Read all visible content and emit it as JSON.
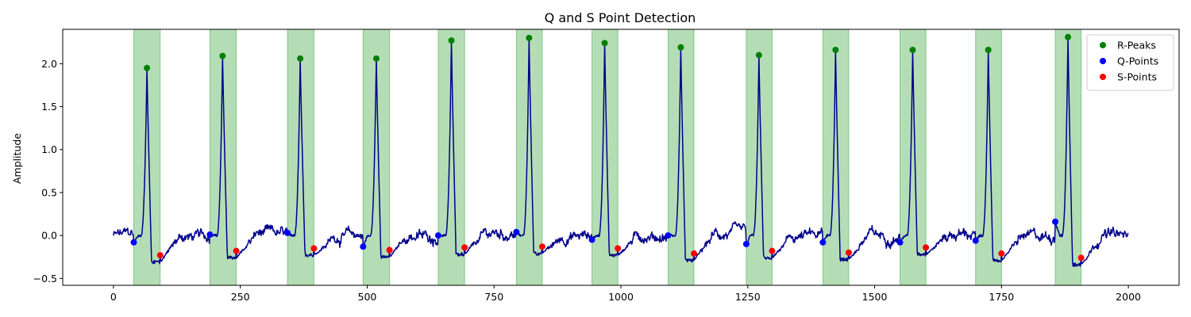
{
  "chart_data": {
    "type": "line",
    "title": "Q and S Point Detection",
    "xlabel": "",
    "ylabel": "Amplitude",
    "xlim": [
      -100,
      2100
    ],
    "ylim": [
      -0.58,
      2.4
    ],
    "xticks": [
      0,
      250,
      500,
      750,
      1000,
      1250,
      1500,
      1750,
      2000
    ],
    "yticks": [
      -0.5,
      0.0,
      0.5,
      1.0,
      1.5,
      2.0
    ],
    "ytick_labels": [
      "−0.5",
      "0.0",
      "0.5",
      "1.0",
      "1.5",
      "2.0"
    ],
    "grid": false,
    "legend_position": "top-right",
    "colors": {
      "signal": "#00008b",
      "r_peaks": "#008000",
      "q_points": "#0000ff",
      "s_points": "#ff0000",
      "qrs_span": "#4caf50"
    },
    "series": [
      {
        "name": "R-Peaks",
        "marker": "dot",
        "x": [
          66,
          215,
          368,
          518,
          666,
          819,
          968,
          1118,
          1272,
          1423,
          1575,
          1724,
          1881
        ],
        "y": [
          1.95,
          2.09,
          2.06,
          2.06,
          2.27,
          2.3,
          2.24,
          2.19,
          2.1,
          2.16,
          2.16,
          2.16,
          2.31
        ]
      },
      {
        "name": "Q-Points",
        "marker": "dot",
        "x": [
          40,
          190,
          343,
          492,
          640,
          794,
          943,
          1093,
          1247,
          1398,
          1550,
          1699,
          1856
        ],
        "y": [
          -0.08,
          0.01,
          0.03,
          -0.13,
          0.0,
          0.04,
          -0.05,
          0.0,
          -0.1,
          -0.08,
          -0.08,
          -0.06,
          0.16
        ]
      },
      {
        "name": "S-Points",
        "marker": "dot",
        "x": [
          92,
          242,
          395,
          544,
          692,
          845,
          994,
          1144,
          1298,
          1449,
          1601,
          1750,
          1907
        ],
        "y": [
          -0.23,
          -0.18,
          -0.15,
          -0.17,
          -0.14,
          -0.13,
          -0.15,
          -0.21,
          -0.18,
          -0.2,
          -0.14,
          -0.21,
          -0.26
        ]
      }
    ],
    "qrs_spans": [
      [
        40,
        92
      ],
      [
        190,
        242
      ],
      [
        343,
        395
      ],
      [
        492,
        544
      ],
      [
        640,
        692
      ],
      [
        794,
        845
      ],
      [
        943,
        994
      ],
      [
        1093,
        1144
      ],
      [
        1247,
        1298
      ],
      [
        1398,
        1449
      ],
      [
        1550,
        1601
      ],
      [
        1699,
        1750
      ],
      [
        1856,
        1907
      ]
    ],
    "signal_length": 2000
  }
}
